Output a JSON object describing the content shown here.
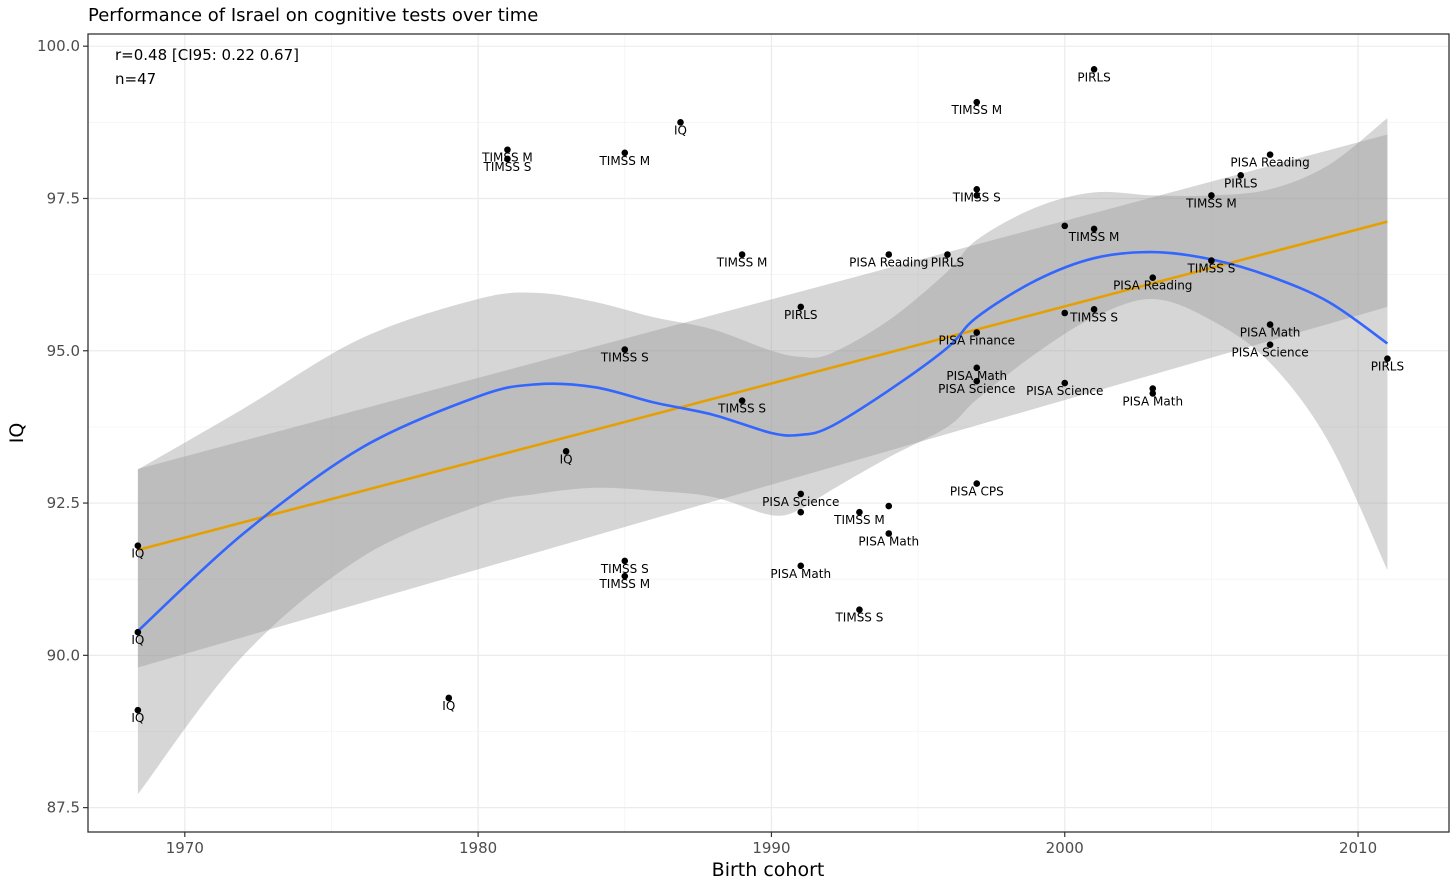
{
  "chart_data": {
    "type": "scatter",
    "title": "Performance of Israel on cognitive tests over time",
    "xlabel": "Birth cohort",
    "ylabel": "IQ",
    "xlim": [
      1966.7,
      2013.1
    ],
    "ylim": [
      87.1,
      100.2
    ],
    "x_ticks": [
      1970,
      1980,
      1990,
      2000,
      2010
    ],
    "y_ticks": [
      87.5,
      90.0,
      92.5,
      95.0,
      97.5,
      100.0
    ],
    "y_tick_labels": [
      "87.5",
      "90.0",
      "92.5",
      "95.0",
      "97.5",
      "100.0"
    ],
    "grid": true,
    "annotation": [
      "r=0.48 [CI95: 0.22 0.67]",
      "n=47"
    ],
    "points": [
      {
        "x": 1968.4,
        "y": 91.8,
        "label": "IQ"
      },
      {
        "x": 1968.4,
        "y": 90.38,
        "label": "IQ"
      },
      {
        "x": 1968.4,
        "y": 89.1,
        "label": "IQ"
      },
      {
        "x": 1979,
        "y": 89.3,
        "label": "IQ"
      },
      {
        "x": 1981,
        "y": 98.3,
        "label": "TIMSS M"
      },
      {
        "x": 1981,
        "y": 98.15,
        "label": "TIMSS S"
      },
      {
        "x": 1983,
        "y": 93.35,
        "label": "IQ"
      },
      {
        "x": 1985,
        "y": 98.25,
        "label": "TIMSS M"
      },
      {
        "x": 1985,
        "y": 95.02,
        "label": "TIMSS S"
      },
      {
        "x": 1985,
        "y": 91.55,
        "label": "TIMSS S"
      },
      {
        "x": 1985,
        "y": 91.3,
        "label": "TIMSS M"
      },
      {
        "x": 1986.9,
        "y": 98.75,
        "label": "IQ"
      },
      {
        "x": 1989,
        "y": 96.58,
        "label": "TIMSS M"
      },
      {
        "x": 1989,
        "y": 94.18,
        "label": "TIMSS S"
      },
      {
        "x": 1991,
        "y": 95.72,
        "label": "PIRLS"
      },
      {
        "x": 1991,
        "y": 92.65,
        "label": "PISA Science"
      },
      {
        "x": 1991,
        "y": 92.35,
        "label": ""
      },
      {
        "x": 1991,
        "y": 91.47,
        "label": "PISA Math"
      },
      {
        "x": 1993,
        "y": 92.35,
        "label": "TIMSS M"
      },
      {
        "x": 1993,
        "y": 90.75,
        "label": "TIMSS S"
      },
      {
        "x": 1994,
        "y": 96.58,
        "label": "PISA Reading"
      },
      {
        "x": 1994,
        "y": 92.45,
        "label": ""
      },
      {
        "x": 1994,
        "y": 92.0,
        "label": "PISA Math"
      },
      {
        "x": 1996,
        "y": 96.58,
        "label": "PIRLS"
      },
      {
        "x": 1997,
        "y": 99.08,
        "label": "TIMSS M"
      },
      {
        "x": 1997,
        "y": 97.65,
        "label": "TIMSS S"
      },
      {
        "x": 1997,
        "y": 97.55,
        "label": ""
      },
      {
        "x": 1997,
        "y": 95.3,
        "label": "PISA Finance"
      },
      {
        "x": 1997,
        "y": 94.72,
        "label": "PISA Math"
      },
      {
        "x": 1997,
        "y": 94.5,
        "label": "PISA Science"
      },
      {
        "x": 1997,
        "y": 92.82,
        "label": "PISA CPS"
      },
      {
        "x": 2000,
        "y": 97.05,
        "label": ""
      },
      {
        "x": 2000,
        "y": 95.62,
        "label": ""
      },
      {
        "x": 2000,
        "y": 94.47,
        "label": "PISA Science"
      },
      {
        "x": 2001,
        "y": 99.62,
        "label": "PIRLS"
      },
      {
        "x": 2001,
        "y": 97.0,
        "label": "TIMSS M"
      },
      {
        "x": 2001,
        "y": 95.68,
        "label": "TIMSS S"
      },
      {
        "x": 2003,
        "y": 96.2,
        "label": "PISA Reading"
      },
      {
        "x": 2003,
        "y": 94.38,
        "label": ""
      },
      {
        "x": 2003,
        "y": 94.3,
        "label": "PISA Math"
      },
      {
        "x": 2005,
        "y": 97.55,
        "label": "TIMSS M"
      },
      {
        "x": 2005,
        "y": 96.48,
        "label": "TIMSS S"
      },
      {
        "x": 2006,
        "y": 97.88,
        "label": "PIRLS"
      },
      {
        "x": 2007,
        "y": 98.22,
        "label": "PISA Reading"
      },
      {
        "x": 2007,
        "y": 95.43,
        "label": "PISA Math"
      },
      {
        "x": 2007,
        "y": 95.1,
        "label": "PISA Science"
      },
      {
        "x": 2011,
        "y": 94.87,
        "label": "PIRLS"
      }
    ],
    "linear_fit": {
      "color": "#e69f00",
      "x": [
        1968.4,
        2011
      ],
      "y": [
        91.73,
        97.12
      ],
      "ci_lower": [
        89.8,
        95.72
      ],
      "ci_upper": [
        93.06,
        98.55
      ]
    },
    "loess_fit": {
      "color": "#3366ff",
      "x": [
        1968.4,
        1972,
        1976,
        1980,
        1982,
        1984,
        1986,
        1988,
        1990,
        1991,
        1992,
        1994,
        1996,
        1997,
        1999,
        2001,
        2003,
        2005,
        2007,
        2009,
        2011
      ],
      "y": [
        90.4,
        92.0,
        93.4,
        94.25,
        94.45,
        94.4,
        94.15,
        93.95,
        93.65,
        93.62,
        93.75,
        94.35,
        95.05,
        95.55,
        96.15,
        96.52,
        96.62,
        96.5,
        96.22,
        95.8,
        95.12
      ],
      "ci_lower": [
        87.72,
        90.0,
        91.6,
        92.45,
        92.65,
        92.75,
        92.7,
        92.6,
        92.3,
        92.4,
        92.7,
        93.25,
        93.75,
        94.2,
        94.95,
        95.55,
        95.85,
        95.5,
        94.8,
        93.5,
        91.4
      ],
      "ci_upper": [
        93.05,
        94.05,
        95.2,
        95.85,
        95.95,
        95.8,
        95.55,
        95.35,
        95.0,
        94.9,
        94.95,
        95.5,
        96.3,
        96.82,
        97.35,
        97.6,
        97.55,
        97.55,
        97.65,
        98.05,
        98.82
      ]
    }
  }
}
